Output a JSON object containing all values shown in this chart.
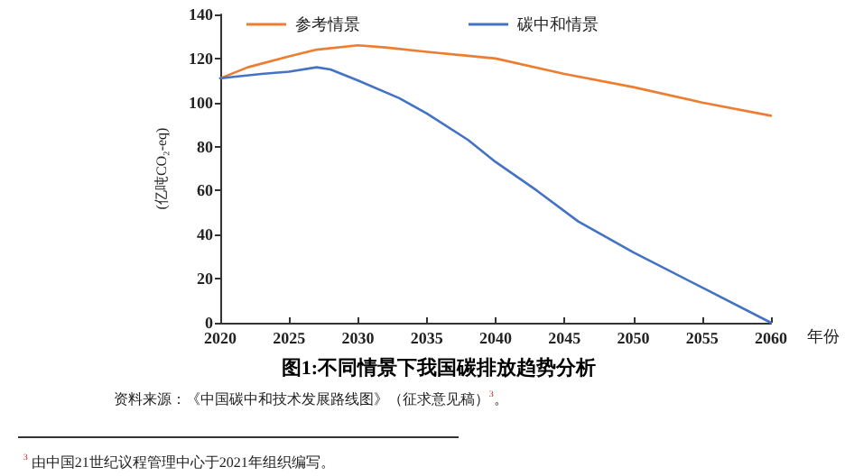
{
  "chart_data": {
    "type": "line",
    "title": "图1:不同情景下我国碳排放趋势分析",
    "xlabel": "年份",
    "ylabel": "(亿吨CO₂-eq)",
    "xlim": [
      2020,
      2060
    ],
    "xticks": [
      2020,
      2025,
      2030,
      2035,
      2040,
      2045,
      2050,
      2055,
      2060
    ],
    "ylim": [
      0,
      140
    ],
    "yticks": [
      0,
      20,
      40,
      60,
      80,
      100,
      120,
      140
    ],
    "legend": "top",
    "grid": false,
    "marker": "none",
    "line_style": "solid",
    "series": [
      {
        "name": "参考情景",
        "color": "#ed7d31",
        "x": [
          2020,
          2022,
          2025,
          2027,
          2030,
          2032,
          2035,
          2040,
          2045,
          2050,
          2055,
          2060
        ],
        "values": [
          111,
          116,
          121,
          124,
          126,
          125,
          123,
          120,
          113,
          107,
          100,
          94
        ]
      },
      {
        "name": "碳中和情景",
        "color": "#4472c4",
        "x": [
          2020,
          2023,
          2025,
          2027,
          2028,
          2030,
          2033,
          2035,
          2038,
          2040,
          2043,
          2046,
          2050,
          2055,
          2060
        ],
        "values": [
          111,
          113,
          114,
          116,
          115,
          110,
          102,
          95,
          83,
          73,
          60,
          46,
          32,
          16,
          0
        ]
      }
    ],
    "annotations": [
      "资料来源：《中国碳中和技术发展路线图》（征求意见稿）$^{3}$。",
      "$^{3}$ 由中国21世纪议程管理中心于2021年组织编写。"
    ]
  }
}
